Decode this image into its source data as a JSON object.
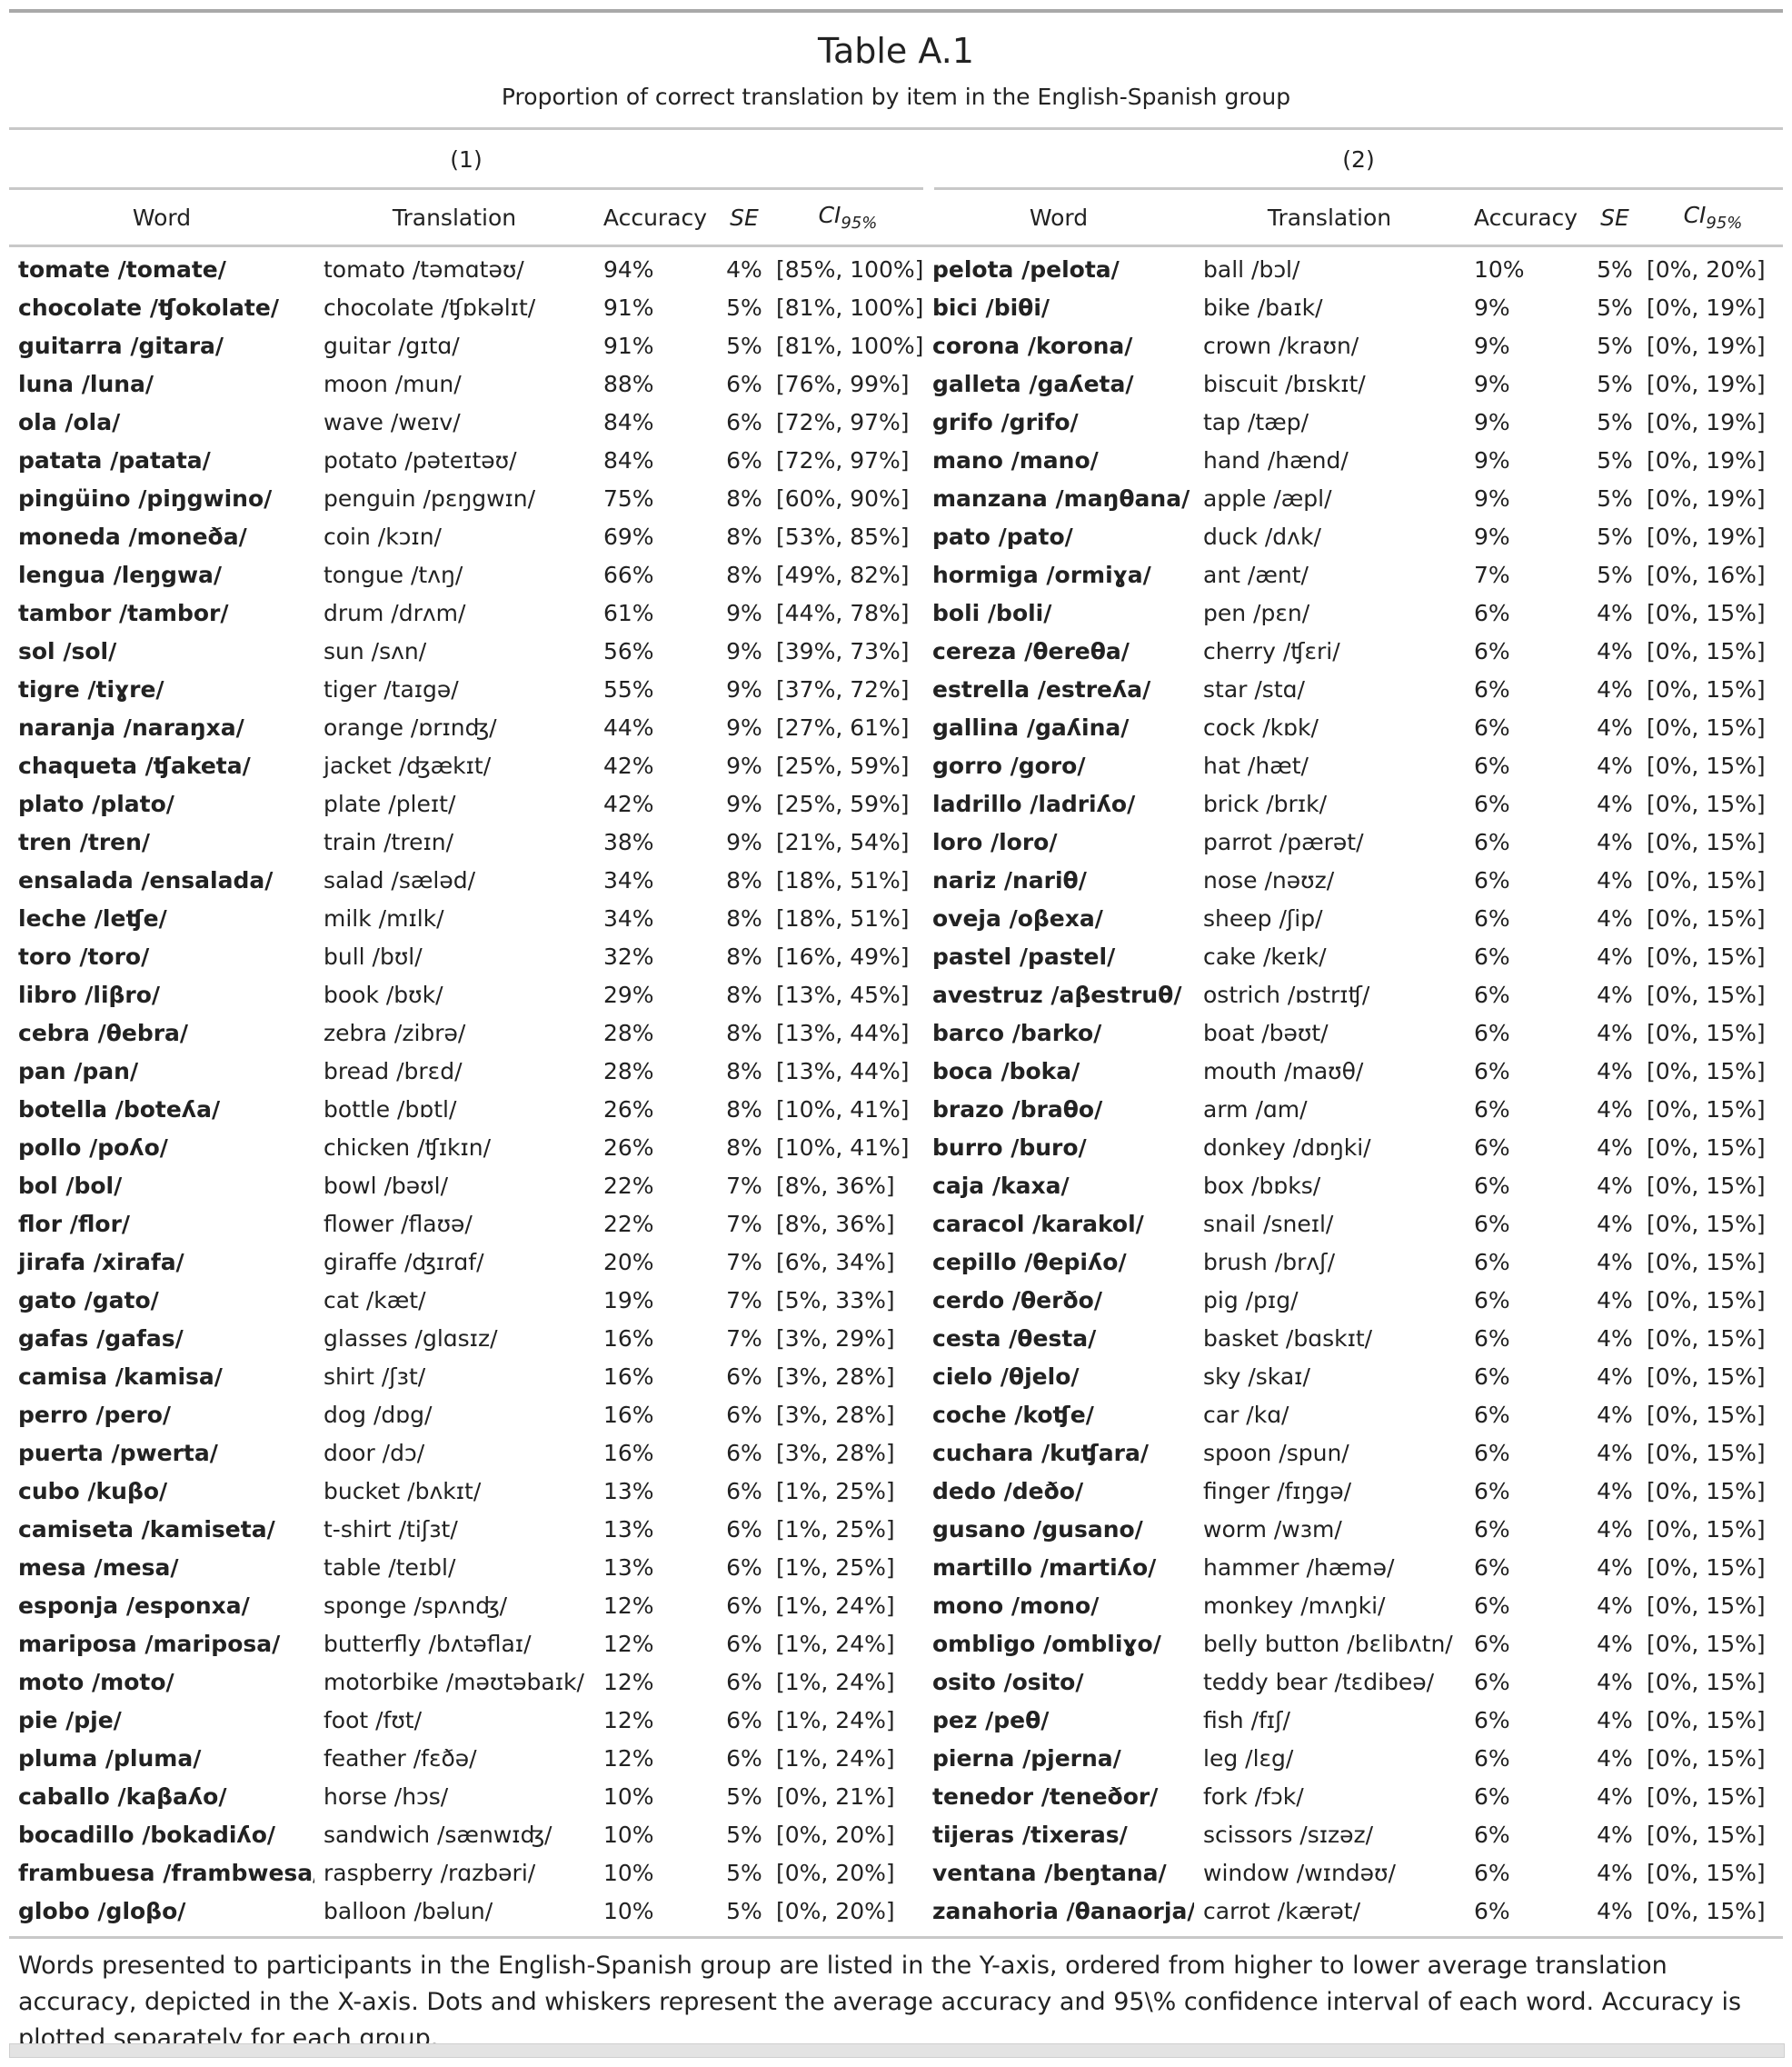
{
  "title": "Table A.1",
  "subtitle": "Proportion of correct translation by item in the English-Spanish group",
  "group_labels": [
    "(1)",
    "(2)"
  ],
  "headers": {
    "word": "Word",
    "translation": "Translation",
    "accuracy": "Accuracy",
    "se": "SE",
    "ci": "CI",
    "ci_sub": "95%"
  },
  "rows": [
    {
      "left": {
        "word": "tomate /tomate/",
        "translation": "tomato /təmɑtəʊ/",
        "accuracy": "94%",
        "se": "4%",
        "ci": "[85%, 100%]"
      },
      "right": {
        "word": "pelota /pelota/",
        "translation": "ball /bɔl/",
        "accuracy": "10%",
        "se": "5%",
        "ci": "[0%, 20%]"
      }
    },
    {
      "left": {
        "word": "chocolate /ʧokolate/",
        "translation": "chocolate /ʧɒkəlɪt/",
        "accuracy": "91%",
        "se": "5%",
        "ci": "[81%, 100%]"
      },
      "right": {
        "word": "bici /biθi/",
        "translation": "bike /baɪk/",
        "accuracy": "9%",
        "se": "5%",
        "ci": "[0%, 19%]"
      }
    },
    {
      "left": {
        "word": "guitarra /gitara/",
        "translation": "guitar /gɪtɑ/",
        "accuracy": "91%",
        "se": "5%",
        "ci": "[81%, 100%]"
      },
      "right": {
        "word": "corona /korona/",
        "translation": "crown /kraʊn/",
        "accuracy": "9%",
        "se": "5%",
        "ci": "[0%, 19%]"
      }
    },
    {
      "left": {
        "word": "luna /luna/",
        "translation": "moon /mun/",
        "accuracy": "88%",
        "se": "6%",
        "ci": "[76%, 99%]"
      },
      "right": {
        "word": "galleta /gaʎeta/",
        "translation": "biscuit /bɪskɪt/",
        "accuracy": "9%",
        "se": "5%",
        "ci": "[0%, 19%]"
      }
    },
    {
      "left": {
        "word": "ola /ola/",
        "translation": "wave /weɪv/",
        "accuracy": "84%",
        "se": "6%",
        "ci": "[72%, 97%]"
      },
      "right": {
        "word": "grifo /grifo/",
        "translation": "tap /tæp/",
        "accuracy": "9%",
        "se": "5%",
        "ci": "[0%, 19%]"
      }
    },
    {
      "left": {
        "word": "patata /patata/",
        "translation": "potato /pəteɪtəʊ/",
        "accuracy": "84%",
        "se": "6%",
        "ci": "[72%, 97%]"
      },
      "right": {
        "word": "mano /mano/",
        "translation": "hand /hænd/",
        "accuracy": "9%",
        "se": "5%",
        "ci": "[0%, 19%]"
      }
    },
    {
      "left": {
        "word": "pingüino /piŋgwino/",
        "translation": "penguin /pɛŋgwɪn/",
        "accuracy": "75%",
        "se": "8%",
        "ci": "[60%, 90%]"
      },
      "right": {
        "word": "manzana /maŋθana/",
        "translation": "apple /æpl/",
        "accuracy": "9%",
        "se": "5%",
        "ci": "[0%, 19%]"
      }
    },
    {
      "left": {
        "word": "moneda /moneða/",
        "translation": "coin /kɔɪn/",
        "accuracy": "69%",
        "se": "8%",
        "ci": "[53%, 85%]"
      },
      "right": {
        "word": "pato /pato/",
        "translation": "duck /dʌk/",
        "accuracy": "9%",
        "se": "5%",
        "ci": "[0%, 19%]"
      }
    },
    {
      "left": {
        "word": "lengua /leŋgwa/",
        "translation": "tongue /tʌŋ/",
        "accuracy": "66%",
        "se": "8%",
        "ci": "[49%, 82%]"
      },
      "right": {
        "word": "hormiga /ormiɣa/",
        "translation": "ant /ænt/",
        "accuracy": "7%",
        "se": "5%",
        "ci": "[0%, 16%]"
      }
    },
    {
      "left": {
        "word": "tambor /tambor/",
        "translation": "drum /drʌm/",
        "accuracy": "61%",
        "se": "9%",
        "ci": "[44%, 78%]"
      },
      "right": {
        "word": "boli /boli/",
        "translation": "pen /pɛn/",
        "accuracy": "6%",
        "se": "4%",
        "ci": "[0%, 15%]"
      }
    },
    {
      "left": {
        "word": "sol /sol/",
        "translation": "sun /sʌn/",
        "accuracy": "56%",
        "se": "9%",
        "ci": "[39%, 73%]"
      },
      "right": {
        "word": "cereza /θereθa/",
        "translation": "cherry /ʧɛri/",
        "accuracy": "6%",
        "se": "4%",
        "ci": "[0%, 15%]"
      }
    },
    {
      "left": {
        "word": "tigre /tiɣre/",
        "translation": "tiger /taɪgə/",
        "accuracy": "55%",
        "se": "9%",
        "ci": "[37%, 72%]"
      },
      "right": {
        "word": "estrella /estreʎa/",
        "translation": "star /stɑ/",
        "accuracy": "6%",
        "se": "4%",
        "ci": "[0%, 15%]"
      }
    },
    {
      "left": {
        "word": "naranja /naraŋxa/",
        "translation": "orange /ɒrɪnʤ/",
        "accuracy": "44%",
        "se": "9%",
        "ci": "[27%, 61%]"
      },
      "right": {
        "word": "gallina /gaʎina/",
        "translation": "cock /kɒk/",
        "accuracy": "6%",
        "se": "4%",
        "ci": "[0%, 15%]"
      }
    },
    {
      "left": {
        "word": "chaqueta /ʧaketa/",
        "translation": "jacket /ʤækɪt/",
        "accuracy": "42%",
        "se": "9%",
        "ci": "[25%, 59%]"
      },
      "right": {
        "word": "gorro /goro/",
        "translation": "hat /hæt/",
        "accuracy": "6%",
        "se": "4%",
        "ci": "[0%, 15%]"
      }
    },
    {
      "left": {
        "word": "plato /plato/",
        "translation": "plate /pleɪt/",
        "accuracy": "42%",
        "se": "9%",
        "ci": "[25%, 59%]"
      },
      "right": {
        "word": "ladrillo /ladriʎo/",
        "translation": "brick /brɪk/",
        "accuracy": "6%",
        "se": "4%",
        "ci": "[0%, 15%]"
      }
    },
    {
      "left": {
        "word": "tren /tren/",
        "translation": "train /treɪn/",
        "accuracy": "38%",
        "se": "9%",
        "ci": "[21%, 54%]"
      },
      "right": {
        "word": "loro /loro/",
        "translation": "parrot /pærət/",
        "accuracy": "6%",
        "se": "4%",
        "ci": "[0%, 15%]"
      }
    },
    {
      "left": {
        "word": "ensalada /ensalada/",
        "translation": "salad /sæləd/",
        "accuracy": "34%",
        "se": "8%",
        "ci": "[18%, 51%]"
      },
      "right": {
        "word": "nariz /nariθ/",
        "translation": "nose /nəʊz/",
        "accuracy": "6%",
        "se": "4%",
        "ci": "[0%, 15%]"
      }
    },
    {
      "left": {
        "word": "leche /leʧe/",
        "translation": "milk /mɪlk/",
        "accuracy": "34%",
        "se": "8%",
        "ci": "[18%, 51%]"
      },
      "right": {
        "word": "oveja /oβexa/",
        "translation": "sheep /ʃip/",
        "accuracy": "6%",
        "se": "4%",
        "ci": "[0%, 15%]"
      }
    },
    {
      "left": {
        "word": "toro /toro/",
        "translation": "bull /bʊl/",
        "accuracy": "32%",
        "se": "8%",
        "ci": "[16%, 49%]"
      },
      "right": {
        "word": "pastel /pastel/",
        "translation": "cake /keɪk/",
        "accuracy": "6%",
        "se": "4%",
        "ci": "[0%, 15%]"
      }
    },
    {
      "left": {
        "word": "libro /liβro/",
        "translation": "book /bʊk/",
        "accuracy": "29%",
        "se": "8%",
        "ci": "[13%, 45%]"
      },
      "right": {
        "word": "avestruz /aβestruθ/",
        "translation": "ostrich /ɒstrɪʧ/",
        "accuracy": "6%",
        "se": "4%",
        "ci": "[0%, 15%]"
      }
    },
    {
      "left": {
        "word": "cebra /θebra/",
        "translation": "zebra /zibrə/",
        "accuracy": "28%",
        "se": "8%",
        "ci": "[13%, 44%]"
      },
      "right": {
        "word": "barco /barko/",
        "translation": "boat /bəʊt/",
        "accuracy": "6%",
        "se": "4%",
        "ci": "[0%, 15%]"
      }
    },
    {
      "left": {
        "word": "pan /pan/",
        "translation": "bread /brɛd/",
        "accuracy": "28%",
        "se": "8%",
        "ci": "[13%, 44%]"
      },
      "right": {
        "word": "boca /boka/",
        "translation": "mouth /maʊθ/",
        "accuracy": "6%",
        "se": "4%",
        "ci": "[0%, 15%]"
      }
    },
    {
      "left": {
        "word": "botella /boteʎa/",
        "translation": "bottle /bɒtl/",
        "accuracy": "26%",
        "se": "8%",
        "ci": "[10%, 41%]"
      },
      "right": {
        "word": "brazo /braθo/",
        "translation": "arm /ɑm/",
        "accuracy": "6%",
        "se": "4%",
        "ci": "[0%, 15%]"
      }
    },
    {
      "left": {
        "word": "pollo /poʎo/",
        "translation": "chicken /ʧɪkɪn/",
        "accuracy": "26%",
        "se": "8%",
        "ci": "[10%, 41%]"
      },
      "right": {
        "word": "burro /buro/",
        "translation": "donkey /dɒŋki/",
        "accuracy": "6%",
        "se": "4%",
        "ci": "[0%, 15%]"
      }
    },
    {
      "left": {
        "word": "bol /bol/",
        "translation": "bowl /bəʊl/",
        "accuracy": "22%",
        "se": "7%",
        "ci": "[8%, 36%]"
      },
      "right": {
        "word": "caja /kaxa/",
        "translation": "box /bɒks/",
        "accuracy": "6%",
        "se": "4%",
        "ci": "[0%, 15%]"
      }
    },
    {
      "left": {
        "word": "flor /flor/",
        "translation": "flower /flaʊə/",
        "accuracy": "22%",
        "se": "7%",
        "ci": "[8%, 36%]"
      },
      "right": {
        "word": "caracol /karakol/",
        "translation": "snail /sneɪl/",
        "accuracy": "6%",
        "se": "4%",
        "ci": "[0%, 15%]"
      }
    },
    {
      "left": {
        "word": "jirafa /xirafa/",
        "translation": "giraffe /ʤɪrɑf/",
        "accuracy": "20%",
        "se": "7%",
        "ci": "[6%, 34%]"
      },
      "right": {
        "word": "cepillo /θepiʎo/",
        "translation": "brush /brʌʃ/",
        "accuracy": "6%",
        "se": "4%",
        "ci": "[0%, 15%]"
      }
    },
    {
      "left": {
        "word": "gato /gato/",
        "translation": "cat /kæt/",
        "accuracy": "19%",
        "se": "7%",
        "ci": "[5%, 33%]"
      },
      "right": {
        "word": "cerdo /θerðo/",
        "translation": "pig /pɪg/",
        "accuracy": "6%",
        "se": "4%",
        "ci": "[0%, 15%]"
      }
    },
    {
      "left": {
        "word": "gafas /gafas/",
        "translation": "glasses /glɑsɪz/",
        "accuracy": "16%",
        "se": "7%",
        "ci": "[3%, 29%]"
      },
      "right": {
        "word": "cesta /θesta/",
        "translation": "basket /bɑskɪt/",
        "accuracy": "6%",
        "se": "4%",
        "ci": "[0%, 15%]"
      }
    },
    {
      "left": {
        "word": "camisa /kamisa/",
        "translation": "shirt /ʃɜt/",
        "accuracy": "16%",
        "se": "6%",
        "ci": "[3%, 28%]"
      },
      "right": {
        "word": "cielo /θjelo/",
        "translation": "sky /skaɪ/",
        "accuracy": "6%",
        "se": "4%",
        "ci": "[0%, 15%]"
      }
    },
    {
      "left": {
        "word": "perro /pero/",
        "translation": "dog /dɒg/",
        "accuracy": "16%",
        "se": "6%",
        "ci": "[3%, 28%]"
      },
      "right": {
        "word": "coche /koʧe/",
        "translation": "car /kɑ/",
        "accuracy": "6%",
        "se": "4%",
        "ci": "[0%, 15%]"
      }
    },
    {
      "left": {
        "word": "puerta /pwerta/",
        "translation": "door /dɔ/",
        "accuracy": "16%",
        "se": "6%",
        "ci": "[3%, 28%]"
      },
      "right": {
        "word": "cuchara /kuʧara/",
        "translation": "spoon /spun/",
        "accuracy": "6%",
        "se": "4%",
        "ci": "[0%, 15%]"
      }
    },
    {
      "left": {
        "word": "cubo /kuβo/",
        "translation": "bucket /bʌkɪt/",
        "accuracy": "13%",
        "se": "6%",
        "ci": "[1%, 25%]"
      },
      "right": {
        "word": "dedo /deðo/",
        "translation": "finger /fɪŋgə/",
        "accuracy": "6%",
        "se": "4%",
        "ci": "[0%, 15%]"
      }
    },
    {
      "left": {
        "word": "camiseta /kamiseta/",
        "translation": "t-shirt /tiʃɜt/",
        "accuracy": "13%",
        "se": "6%",
        "ci": "[1%, 25%]"
      },
      "right": {
        "word": "gusano /gusano/",
        "translation": "worm /wɜm/",
        "accuracy": "6%",
        "se": "4%",
        "ci": "[0%, 15%]"
      }
    },
    {
      "left": {
        "word": "mesa /mesa/",
        "translation": "table /teɪbl/",
        "accuracy": "13%",
        "se": "6%",
        "ci": "[1%, 25%]"
      },
      "right": {
        "word": "martillo /martiʎo/",
        "translation": "hammer /hæmə/",
        "accuracy": "6%",
        "se": "4%",
        "ci": "[0%, 15%]"
      }
    },
    {
      "left": {
        "word": "esponja /esponxa/",
        "translation": "sponge /spʌnʤ/",
        "accuracy": "12%",
        "se": "6%",
        "ci": "[1%, 24%]"
      },
      "right": {
        "word": "mono /mono/",
        "translation": "monkey /mʌŋki/",
        "accuracy": "6%",
        "se": "4%",
        "ci": "[0%, 15%]"
      }
    },
    {
      "left": {
        "word": "mariposa /mariposa/",
        "translation": "butterfly /bʌtəflaɪ/",
        "accuracy": "12%",
        "se": "6%",
        "ci": "[1%, 24%]"
      },
      "right": {
        "word": "ombligo /ombliɣo/",
        "translation": "belly button /bɛlibʌtn/",
        "accuracy": "6%",
        "se": "4%",
        "ci": "[0%, 15%]"
      }
    },
    {
      "left": {
        "word": "moto /moto/",
        "translation": "motorbike /məʊtəbaɪk/",
        "accuracy": "12%",
        "se": "6%",
        "ci": "[1%, 24%]"
      },
      "right": {
        "word": "osito /osito/",
        "translation": "teddy bear /tɛdibeə/",
        "accuracy": "6%",
        "se": "4%",
        "ci": "[0%, 15%]"
      }
    },
    {
      "left": {
        "word": "pie /pje/",
        "translation": "foot /fʊt/",
        "accuracy": "12%",
        "se": "6%",
        "ci": "[1%, 24%]"
      },
      "right": {
        "word": "pez /peθ/",
        "translation": "fish /fɪʃ/",
        "accuracy": "6%",
        "se": "4%",
        "ci": "[0%, 15%]"
      }
    },
    {
      "left": {
        "word": "pluma /pluma/",
        "translation": "feather /fɛðə/",
        "accuracy": "12%",
        "se": "6%",
        "ci": "[1%, 24%]"
      },
      "right": {
        "word": "pierna /pjerna/",
        "translation": "leg /lɛg/",
        "accuracy": "6%",
        "se": "4%",
        "ci": "[0%, 15%]"
      }
    },
    {
      "left": {
        "word": "caballo /kaβaʎo/",
        "translation": "horse /hɔs/",
        "accuracy": "10%",
        "se": "5%",
        "ci": "[0%, 21%]"
      },
      "right": {
        "word": "tenedor /teneðor/",
        "translation": "fork /fɔk/",
        "accuracy": "6%",
        "se": "4%",
        "ci": "[0%, 15%]"
      }
    },
    {
      "left": {
        "word": "bocadillo /bokadiʎo/",
        "translation": "sandwich /sænwɪʤ/",
        "accuracy": "10%",
        "se": "5%",
        "ci": "[0%, 20%]"
      },
      "right": {
        "word": "tijeras /tixeras/",
        "translation": "scissors /sɪzəz/",
        "accuracy": "6%",
        "se": "4%",
        "ci": "[0%, 15%]"
      }
    },
    {
      "left": {
        "word": "frambuesa /frambwesa/",
        "translation": "raspberry /rɑzbəri/",
        "accuracy": "10%",
        "se": "5%",
        "ci": "[0%, 20%]"
      },
      "right": {
        "word": "ventana /beŋtana/",
        "translation": "window /wɪndəʊ/",
        "accuracy": "6%",
        "se": "4%",
        "ci": "[0%, 15%]"
      }
    },
    {
      "left": {
        "word": "globo /gloβo/",
        "translation": "balloon /bəlun/",
        "accuracy": "10%",
        "se": "5%",
        "ci": "[0%, 20%]"
      },
      "right": {
        "word": "zanahoria /θanaorja/",
        "translation": "carrot /kærət/",
        "accuracy": "6%",
        "se": "4%",
        "ci": "[0%, 15%]"
      }
    }
  ],
  "note": "Words presented to participants in the English-Spanish group are listed in the Y-axis, ordered from higher to lower average translation accuracy, depicted in the X-axis. Dots and whiskers represent the average accuracy and 95\\% confidence interval of each word. Accuracy is plotted separately for each group."
}
